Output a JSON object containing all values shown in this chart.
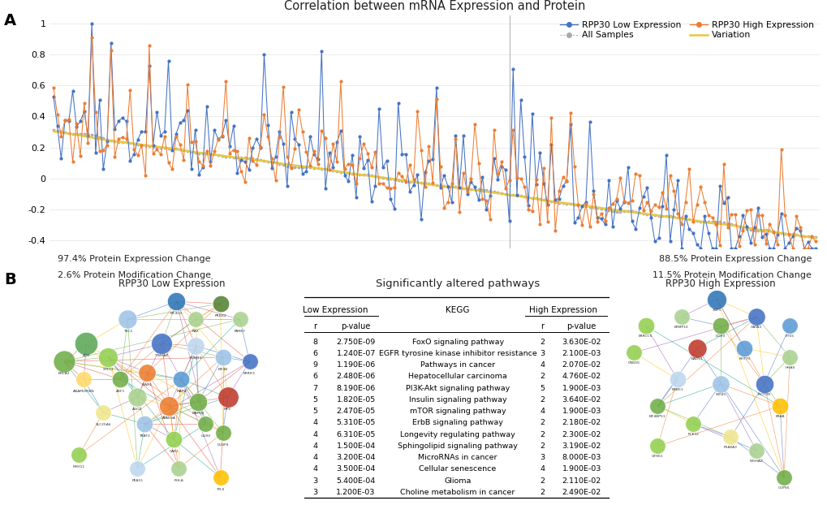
{
  "title_A": "Correlation between mRNA Expression and Protein",
  "ylim": [
    -0.45,
    1.05
  ],
  "yticks": [
    -0.4,
    -0.2,
    0,
    0.2,
    0.4,
    0.6,
    0.8,
    1
  ],
  "n_points": 200,
  "left_annotation_line1": "97.4% Protein Expression Change",
  "left_annotation_line2": "2.6% Protein Modification Change",
  "right_annotation_line1": "88.5% Protein Expression Change",
  "right_annotation_line2": "11.5% Protein Modification Change",
  "panel_B_title_left": "RPP30 Low Expression",
  "panel_B_title_center": "Significantly altered pathways",
  "panel_B_title_right": "RPP30 High Expression",
  "table_data": [
    [
      8,
      "2.750E-09",
      "FoxO signaling pathway",
      2,
      "3.630E-02"
    ],
    [
      6,
      "1.240E-07",
      "EGFR tyrosine kinase inhibitor resistance",
      3,
      "2.100E-03"
    ],
    [
      9,
      "1.190E-06",
      "Pathways in cancer",
      4,
      "2.070E-02"
    ],
    [
      6,
      "2.480E-06",
      "Hepatocellular carcinoma",
      2,
      "4.760E-02"
    ],
    [
      7,
      "8.190E-06",
      "PI3K-Akt signaling pathway",
      5,
      "1.900E-03"
    ],
    [
      5,
      "1.820E-05",
      "Insulin signaling pathway",
      2,
      "3.640E-02"
    ],
    [
      5,
      "2.470E-05",
      "mTOR signaling pathway",
      4,
      "1.900E-03"
    ],
    [
      4,
      "5.310E-05",
      "ErbB signaling pathway",
      2,
      "2.180E-02"
    ],
    [
      4,
      "6.310E-05",
      "Longevity regulating pathway",
      2,
      "2.300E-02"
    ],
    [
      4,
      "1.500E-04",
      "Sphingolipid signaling pathway",
      2,
      "3.190E-02"
    ],
    [
      4,
      "3.200E-04",
      "MicroRNAs in cancer",
      3,
      "8.000E-03"
    ],
    [
      4,
      "3.500E-04",
      "Cellular senescence",
      4,
      "1.900E-03"
    ],
    [
      3,
      "5.400E-04",
      "Glioma",
      2,
      "2.110E-02"
    ],
    [
      3,
      "1.200E-03",
      "Choline metabolism in cancer",
      2,
      "2.490E-02"
    ]
  ],
  "bg_color": "#FFFFFF",
  "line_color_low": "#4472C4",
  "line_color_high": "#ED7D31",
  "line_color_all": "#AAAAAA",
  "line_color_variation": "#E8C840",
  "vline_x_ratio": 0.595,
  "grid_color": "#E8E8E8"
}
